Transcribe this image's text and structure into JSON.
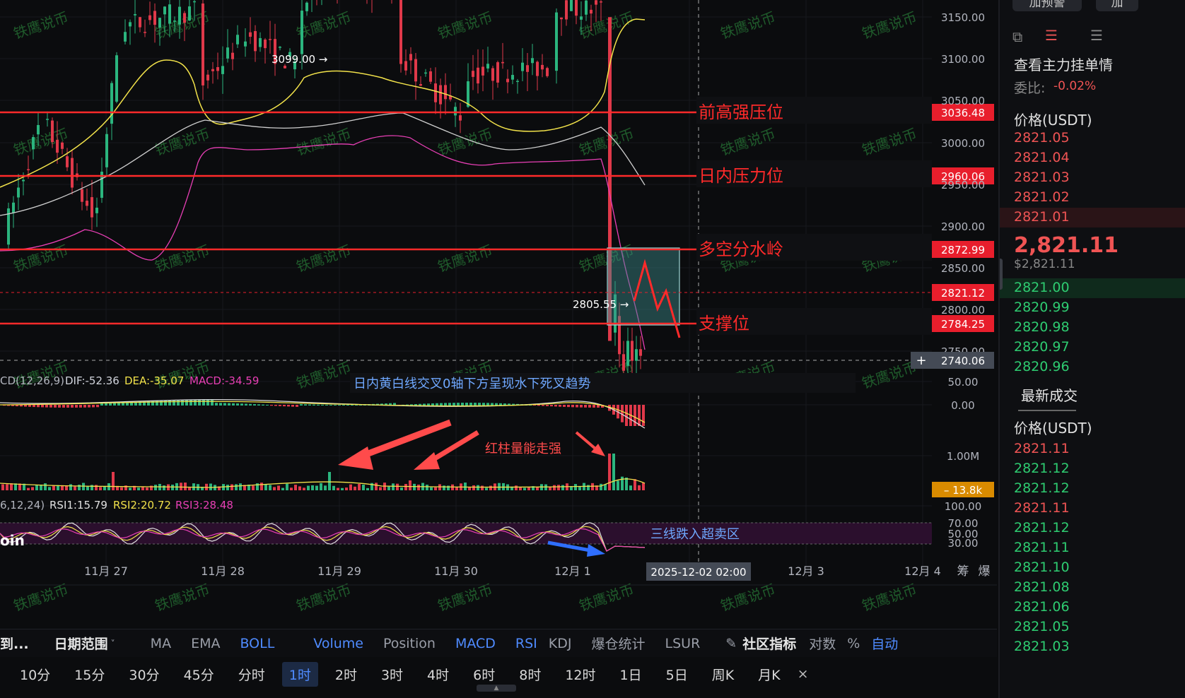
{
  "chart_data": {
    "type": "candlestick",
    "symbol_fragment": "oin",
    "watermark": "铁鹰说币",
    "price_axis": {
      "ticks": [
        "3150.00",
        "3100.00",
        "3050.00",
        "3000.00",
        "2950.00",
        "2900.00",
        "2850.00",
        "2800.00",
        "2750.00"
      ],
      "ylim": [
        2740,
        3170
      ]
    },
    "x_ticks": [
      "11月 27",
      "11月 28",
      "11月 29",
      "11月 30",
      "12月 1",
      "12月 3",
      "12月 4"
    ],
    "crosshair": {
      "date_label": "2025-12-02 02:00",
      "price_label": "2740.06"
    },
    "labels": {
      "high": "3099.00 →",
      "low": "2805.55 →"
    },
    "levels": [
      {
        "price": 3036.48,
        "label": "3036.48",
        "name": "前高强压位"
      },
      {
        "price": 2960.06,
        "label": "2960.06",
        "name": "日内压力位"
      },
      {
        "price": 2872.99,
        "label": "2872.99",
        "name": "多空分水岭"
      },
      {
        "price": 2784.25,
        "label": "2784.25",
        "name": "支撑位"
      }
    ],
    "current_price": {
      "price": 2821.12,
      "label": "2821.12"
    },
    "macd": {
      "legend": {
        "name": "CD(12,26,9)",
        "dif": "DIF:-52.36",
        "dea": "DEA:-35.07",
        "macd": "MACD:-34.59"
      },
      "axis": [
        "50.00",
        "0.00"
      ],
      "annotation": "日内黄白线交叉0轴下方呈现水下死叉趋势"
    },
    "volume": {
      "axis_top": "1.00M",
      "current": "13.8k",
      "annotation": "红柱量能走强"
    },
    "rsi": {
      "legend": {
        "name": "6,12,24)",
        "rsi1": "RSI1:15.79",
        "rsi2": "RSI2:20.72",
        "rsi3": "RSI3:28.48"
      },
      "axis": [
        "100.00",
        "70.00",
        "50.00",
        "30.00"
      ],
      "annotation": "三线跌入超卖区"
    },
    "colors": {
      "up": "#2bb57e",
      "down": "#e0394a",
      "level": "#ff2a2a",
      "boll_upper": "#f2e24a",
      "boll_mid": "#cfcfcf",
      "boll_lower": "#e83fb5"
    }
  },
  "corner_buttons": {
    "right": "筹",
    "right2": "爆"
  },
  "toolbar1": {
    "left_cut": "到...",
    "date_range": "日期范围",
    "indicators": [
      "MA",
      "EMA",
      "BOLL",
      "Volume",
      "Position",
      "MACD",
      "RSI",
      "KDJ",
      "爆仓统计",
      "LSUR"
    ],
    "community": "社区指标",
    "log": "对数",
    "pct": "%",
    "auto": "自动"
  },
  "toolbar2": {
    "timeframes": [
      "10分",
      "15分",
      "30分",
      "45分",
      "分时",
      "1时",
      "2时",
      "3时",
      "4时",
      "6时",
      "8时",
      "12时",
      "1日",
      "5日",
      "周K",
      "月K"
    ],
    "selected": "1时",
    "close": "×"
  },
  "side": {
    "top_btn1": "加预警",
    "top_btn2": "加",
    "title": "查看主力挂单情",
    "ratio_label": "委比:",
    "ratio_value": "-0.02%",
    "price_header": "价格(USDT)",
    "asks": [
      "2821.05",
      "2821.04",
      "2821.03",
      "2821.02",
      "2821.01"
    ],
    "last_price": "2,821.11",
    "last_usd": "$2,821.11",
    "bids": [
      "2821.00",
      "2820.99",
      "2820.98",
      "2820.97",
      "2820.96"
    ],
    "trades_title": "最新成交",
    "trades_header": "价格(USDT)",
    "trades": [
      {
        "p": "2821.11",
        "side": "sell"
      },
      {
        "p": "2821.12",
        "side": "buy"
      },
      {
        "p": "2821.12",
        "side": "buy"
      },
      {
        "p": "2821.11",
        "side": "sell"
      },
      {
        "p": "2821.12",
        "side": "buy"
      },
      {
        "p": "2821.11",
        "side": "buy"
      },
      {
        "p": "2821.10",
        "side": "buy"
      },
      {
        "p": "2821.08",
        "side": "buy"
      },
      {
        "p": "2821.06",
        "side": "buy"
      },
      {
        "p": "2821.05",
        "side": "buy"
      },
      {
        "p": "2821.03",
        "side": "buy"
      }
    ]
  }
}
